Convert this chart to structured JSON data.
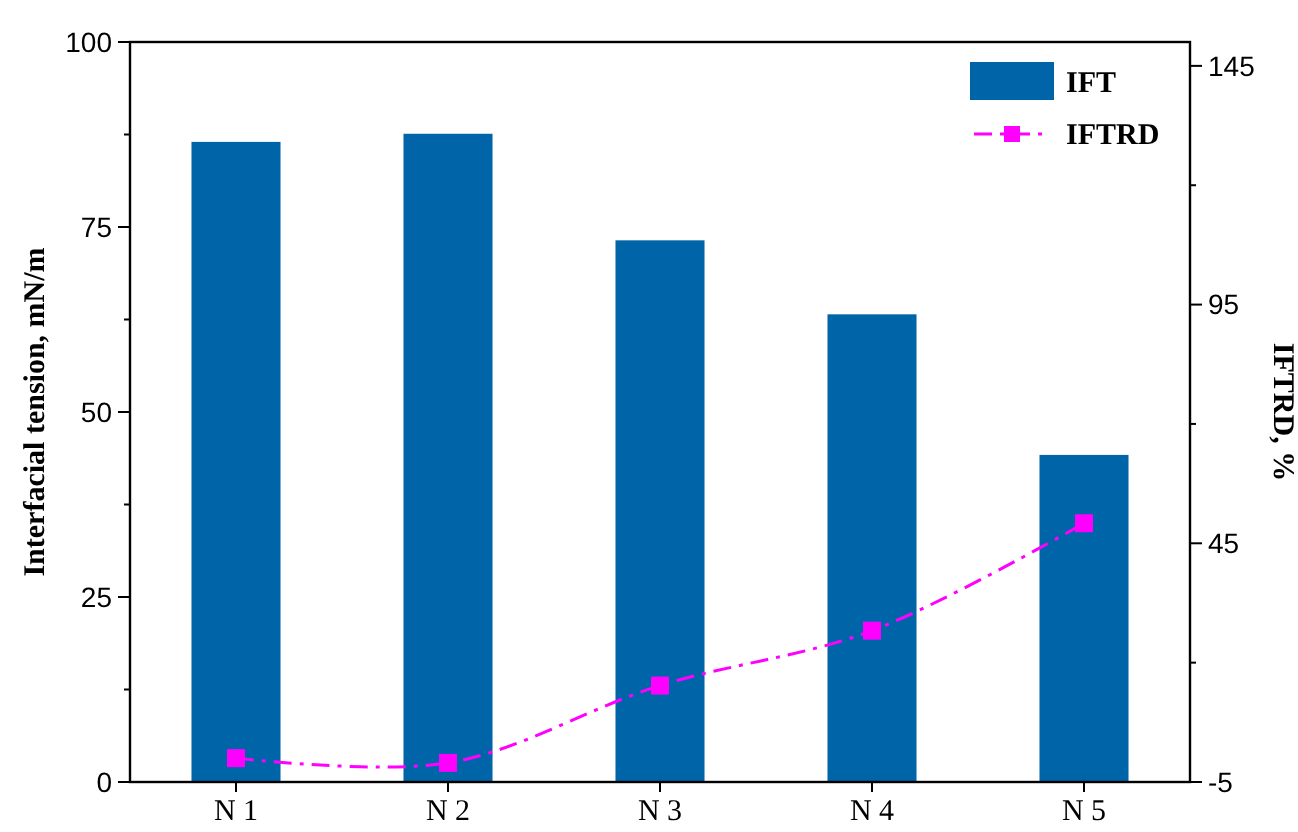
{
  "chart_data": {
    "type": "bar",
    "categories": [
      "N 1",
      "N 2",
      "N 3",
      "N 4",
      "N 5"
    ],
    "ylabel": "Interfacial tension, mN/m",
    "y2label": "IFTRD, %",
    "series": [
      {
        "name": "IFT",
        "color": "#0064a8",
        "values": [
          86.5,
          87.6,
          73.2,
          63.2,
          44.2
        ]
      },
      {
        "name": "IFTRD",
        "type": "line",
        "axis": "y2",
        "color": "#ff00ff",
        "marker": "square",
        "line_style": "dashed",
        "values": [
          0,
          -1,
          15.2,
          26.7,
          49.2
        ]
      }
    ],
    "ylim": [
      0,
      100
    ],
    "yticks": [
      0,
      {
        "value": 12.5,
        "label": null
      },
      25,
      {
        "value": 37.5,
        "label": null
      },
      50,
      {
        "value": 62.5,
        "label": null
      },
      75,
      {
        "value": 87.5,
        "label": null
      },
      100
    ],
    "y2lim": [
      -5,
      150
    ],
    "y2ticks": [
      -5,
      {
        "value": 20,
        "label": null
      },
      45,
      {
        "value": 70,
        "label": null
      },
      95,
      {
        "value": 120,
        "label": null
      },
      145
    ],
    "legend": "top right",
    "grid": false
  }
}
